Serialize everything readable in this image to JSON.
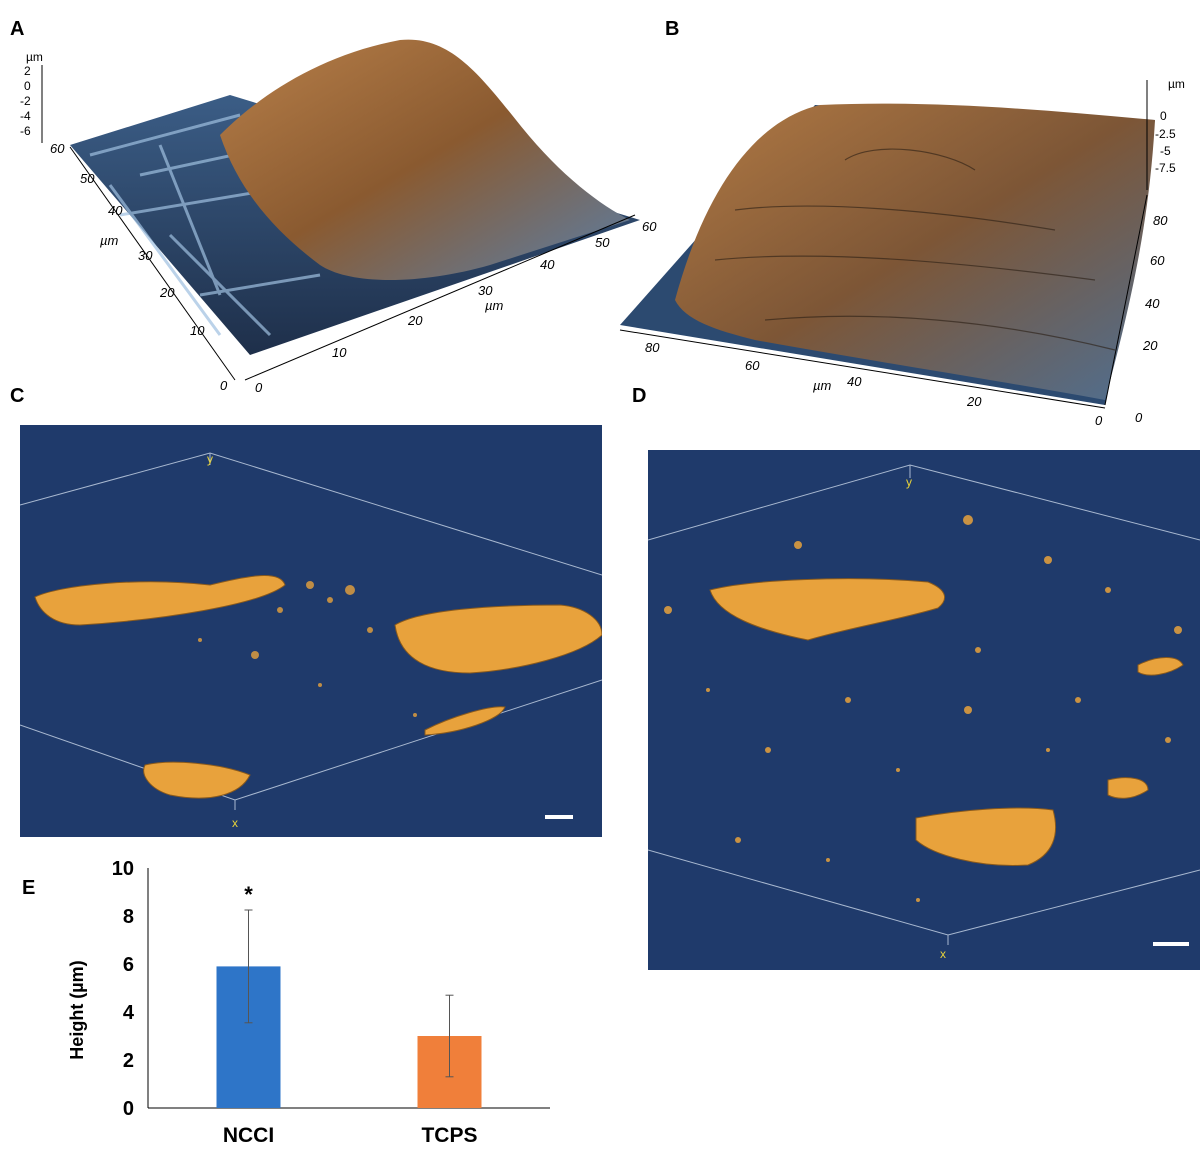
{
  "panels": {
    "A": "A",
    "B": "B",
    "C": "C",
    "D": "D",
    "E": "E"
  },
  "afm_A": {
    "z_unit": "µm",
    "z_ticks": [
      "2",
      "0",
      "-2",
      "-4",
      "-6"
    ],
    "y_unit": "µm",
    "y_ticks": [
      "60",
      "50",
      "40",
      "30",
      "20",
      "10",
      "0"
    ],
    "x_unit": "µm",
    "x_ticks": [
      "0",
      "10",
      "20",
      "30",
      "40",
      "50",
      "60"
    ]
  },
  "afm_B": {
    "z_unit": "µm",
    "z_ticks": [
      "0",
      "-2.5",
      "-5",
      "-7.5"
    ],
    "y_ticks": [
      "80",
      "60",
      "40",
      "20",
      "0"
    ],
    "y_unit": "µm",
    "x_unit": "µm",
    "x_ticks": [
      "80",
      "60",
      "40",
      "20",
      "0"
    ],
    "right_ticks": [
      "80",
      "60",
      "40",
      "20",
      "0"
    ],
    "right_unit": "µm"
  },
  "confocal_C": {
    "y_label": "y",
    "x_label": "x"
  },
  "confocal_D": {
    "y_label": "y",
    "x_label": "x"
  },
  "colors": {
    "ncci_bar": "#2e75c8",
    "tcps_bar": "#f07f3a",
    "confocal_bg": "#1f3a6b",
    "cell_orange": "#e8a23c"
  },
  "chart_data": {
    "type": "bar",
    "categories": [
      "NCCI",
      "TCPS"
    ],
    "values": [
      5.9,
      3.0
    ],
    "errors": [
      2.35,
      1.7
    ],
    "annotations": [
      {
        "category": "NCCI",
        "text": "*"
      }
    ],
    "ylabel": "Height (µm)",
    "ylim": [
      0,
      10
    ],
    "yticks": [
      "0",
      "2",
      "4",
      "6",
      "8",
      "10"
    ],
    "grid": false
  }
}
